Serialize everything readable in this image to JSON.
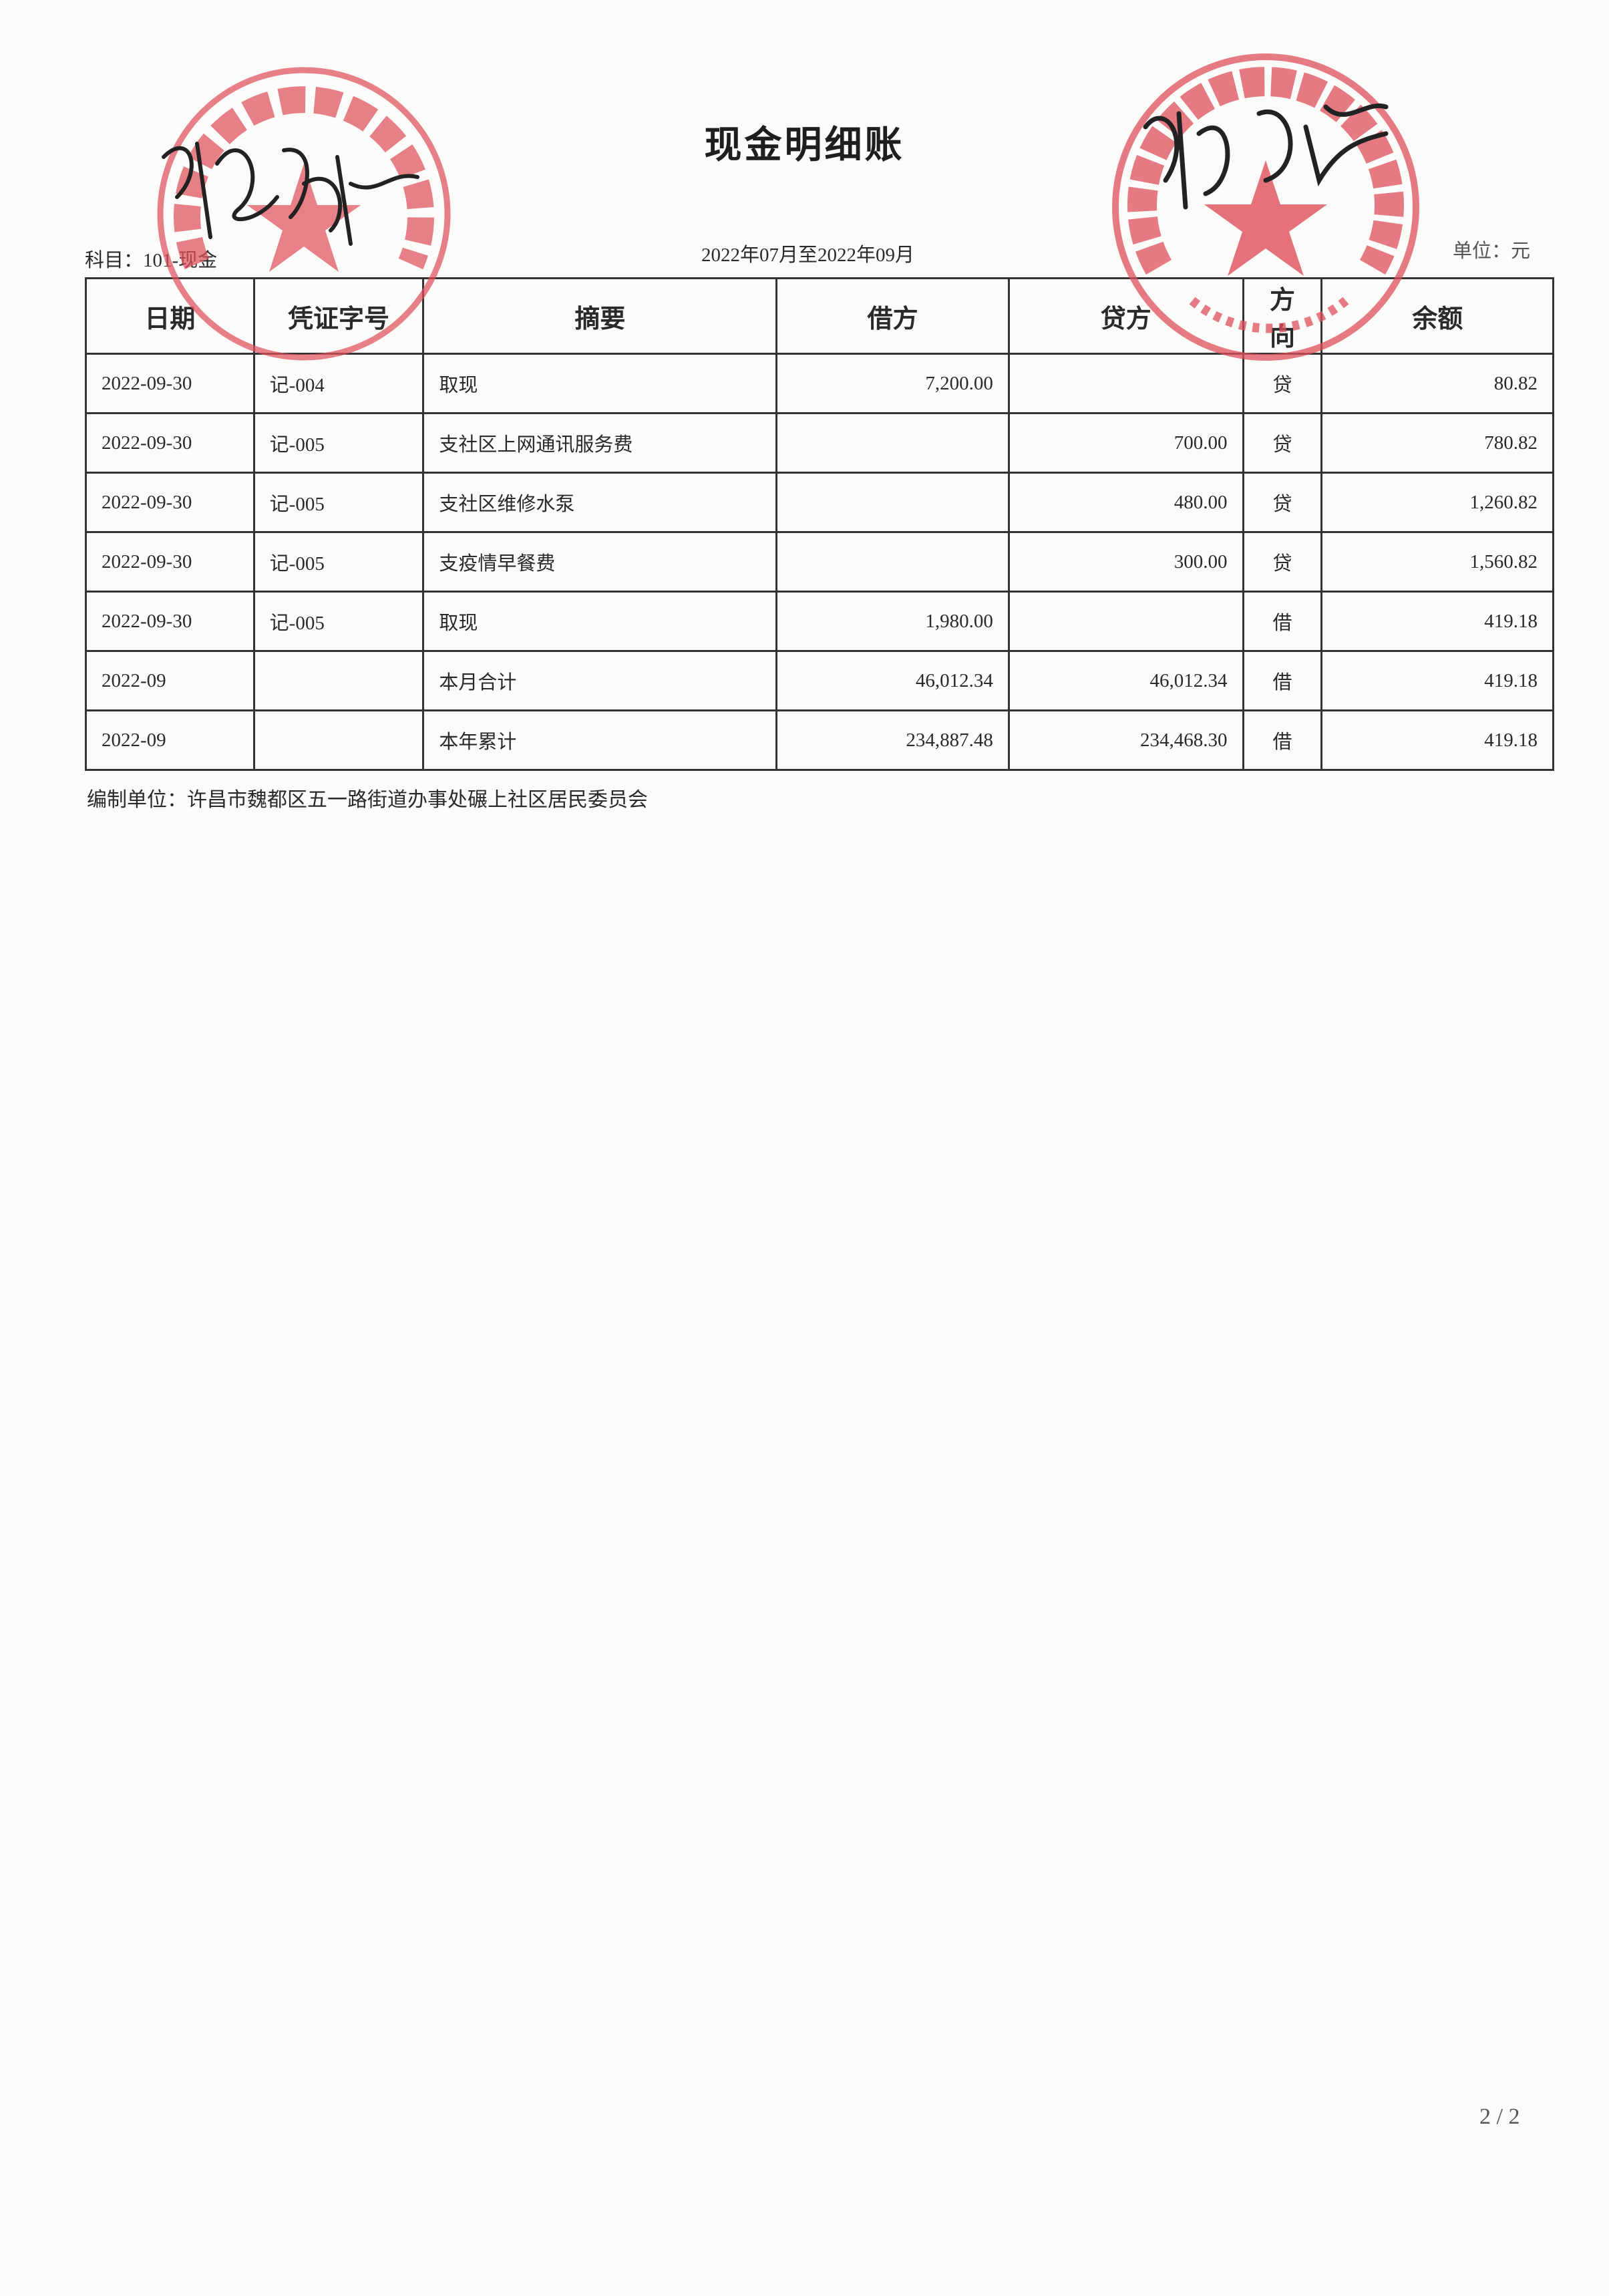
{
  "document": {
    "title": "现金明细账",
    "subject": "科目：101-现金",
    "period": "2022年07月至2022年09月",
    "unit": "单位：元",
    "footer": "编制单位：许昌市魏都区五一路街道办事处碾上社区居民委员会",
    "page_number": "2 / 2"
  },
  "table": {
    "headers": [
      "日期",
      "凭证字号",
      "摘要",
      "借方",
      "贷方",
      "方向",
      "余额"
    ],
    "rows": [
      [
        "2022-09-30",
        "记-004",
        "取现",
        "7,200.00",
        "",
        "贷",
        "80.82"
      ],
      [
        "2022-09-30",
        "记-005",
        "支社区上网通讯服务费",
        "",
        "700.00",
        "贷",
        "780.82"
      ],
      [
        "2022-09-30",
        "记-005",
        "支社区维修水泵",
        "",
        "480.00",
        "贷",
        "1,260.82"
      ],
      [
        "2022-09-30",
        "记-005",
        "支疫情早餐费",
        "",
        "300.00",
        "贷",
        "1,560.82"
      ],
      [
        "2022-09-30",
        "记-005",
        "取现",
        "1,980.00",
        "",
        "借",
        "419.18"
      ],
      [
        "2022-09",
        "",
        "本月合计",
        "46,012.34",
        "46,012.34",
        "借",
        "419.18"
      ],
      [
        "2022-09",
        "",
        "本年累计",
        "234,887.48",
        "234,468.30",
        "借",
        "419.18"
      ]
    ]
  },
  "stamps": {
    "left": {
      "text": "碾上社区居务监督委员会",
      "color": "#e0505a"
    },
    "right": {
      "text": "许昌市魏都区五一路街道办事处碾上社区居民委员会",
      "code": "41100200108 2",
      "color": "#e0505a"
    }
  },
  "signatures": [
    "张爱根",
    "魏风雨"
  ]
}
